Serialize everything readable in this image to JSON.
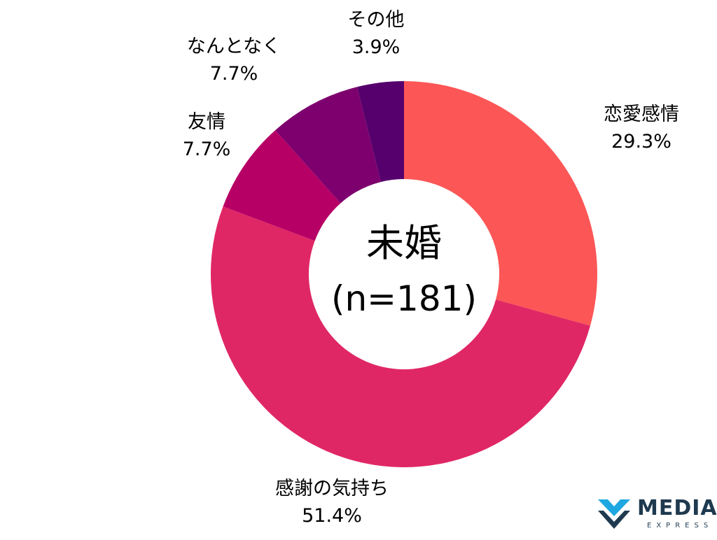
{
  "chart_data": {
    "type": "pie",
    "style": "donut",
    "center_title": "未婚",
    "center_subtitle": "(n=181)",
    "slices": [
      {
        "label": "恋愛感情",
        "value": 29.3,
        "value_text": "29.3%",
        "color": "#fc5656"
      },
      {
        "label": "感謝の気持ち",
        "value": 51.4,
        "value_text": "51.4%",
        "color": "#e02765"
      },
      {
        "label": "友情",
        "value": 7.7,
        "value_text": "7.7%",
        "color": "#b70066"
      },
      {
        "label": "なんとなく",
        "value": 7.7,
        "value_text": "7.7%",
        "color": "#7d006e"
      },
      {
        "label": "その他",
        "value": 3.9,
        "value_text": "3.9%",
        "color": "#55006c"
      }
    ],
    "start": "12 o'clock",
    "direction": "clockwise",
    "legend": "none"
  },
  "logo": {
    "name": "MEDIA",
    "sub": "EXPRESS",
    "color": "#1f3a4f",
    "accent": "#1ea7e0"
  }
}
